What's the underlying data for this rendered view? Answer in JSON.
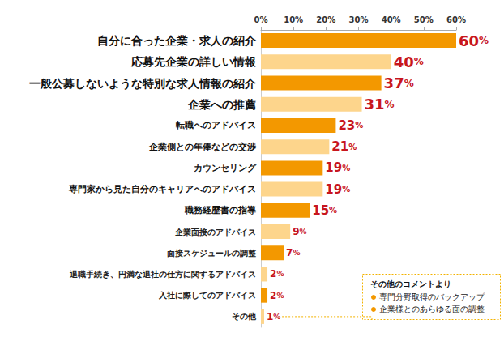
{
  "chart_data": {
    "type": "bar",
    "orientation": "horizontal",
    "categories": [
      "自分に合った企業・求人の紹介",
      "応募先企業の詳しい情報",
      "一般公募しないような特別な求人情報の紹介",
      "企業への推薦",
      "転職へのアドバイス",
      "企業側との年俸などの交渉",
      "カウンセリング",
      "専門家から見た自分のキャリアへのアドバイス",
      "職務経歴書の指導",
      "企業面接のアドバイス",
      "面接スケジュールの調整",
      "退職手続き、円満な退社の仕方に関するアドバイス",
      "入社に際してのアドバイス",
      "その他"
    ],
    "values": [
      60,
      40,
      37,
      31,
      23,
      21,
      19,
      19,
      15,
      9,
      7,
      2,
      2,
      1
    ],
    "value_labels": [
      "60%",
      "40%",
      "37%",
      "31%",
      "23%",
      "21%",
      "19%",
      "19%",
      "15%",
      "9%",
      "7%",
      "2%",
      "2%",
      "1%"
    ],
    "colors": [
      "#f39800",
      "#fdd58c",
      "#f39800",
      "#fdd58c",
      "#f39800",
      "#fdd58c",
      "#f39800",
      "#fdd58c",
      "#f39800",
      "#fdd58c",
      "#f39800",
      "#fdd58c",
      "#f39800",
      "#fdd58c"
    ],
    "xlim": [
      0,
      60
    ],
    "xticks": [
      {
        "value": 0,
        "label": "0%"
      },
      {
        "value": 10,
        "label": "10%"
      },
      {
        "value": 20,
        "label": "20%"
      },
      {
        "value": 30,
        "label": "30%"
      },
      {
        "value": 40,
        "label": "40%"
      },
      {
        "value": 50,
        "label": "50%"
      },
      {
        "value": 60,
        "label": "60%"
      }
    ],
    "grid": false,
    "data_labels": true,
    "annotations": [
      {
        "title": "その他のコメントより",
        "items": [
          "専門分野取得のバックアップ",
          "企業様とのあらゆる面の調整"
        ]
      }
    ]
  }
}
